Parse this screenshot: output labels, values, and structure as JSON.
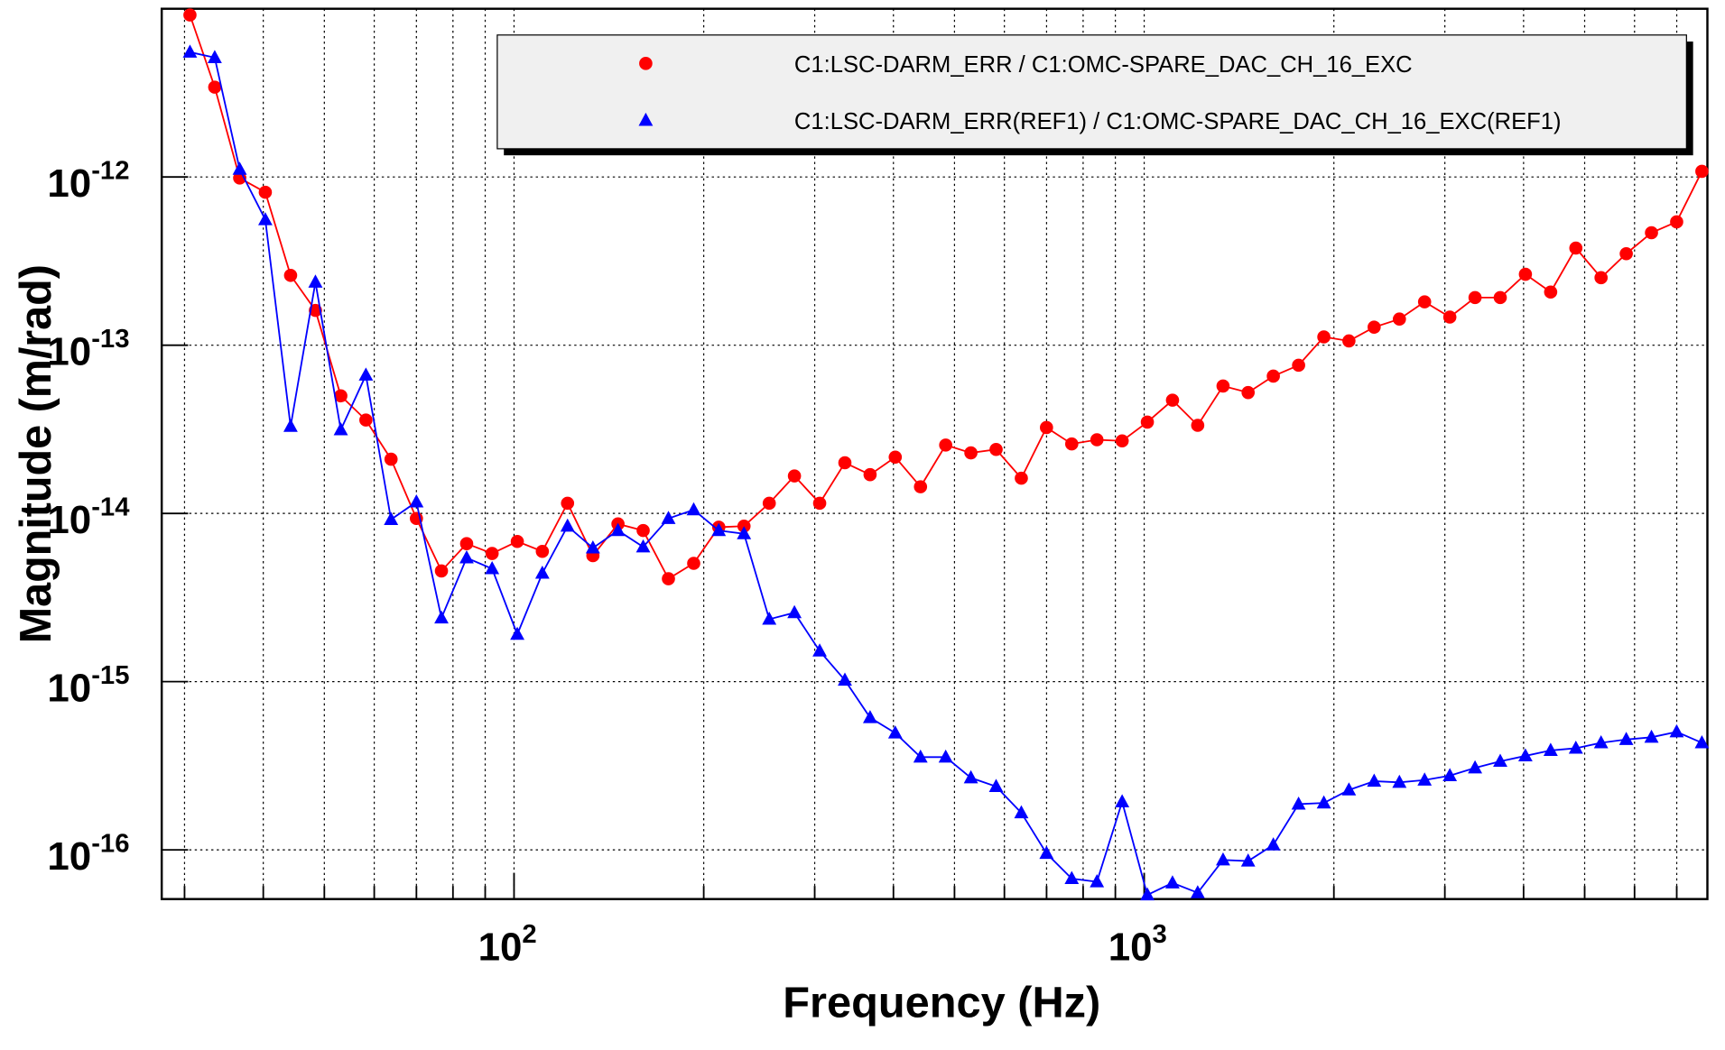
{
  "chart_data": {
    "type": "line",
    "x_label": "Frequency (Hz)",
    "y_label": "Magnitude (m/rad)",
    "log_x": true,
    "log_y": true,
    "grid": true,
    "legend_position": "top-right",
    "xlim": [
      27.6,
      7830
    ],
    "ylim": [
      5.1e-17,
      1e-11
    ],
    "xticks": [
      {
        "value": 100,
        "label": "10",
        "exponent": "2"
      },
      {
        "value": 1000,
        "label": "10",
        "exponent": "3"
      }
    ],
    "xminor_ticks": [
      30,
      40,
      50,
      60,
      70,
      80,
      90,
      200,
      300,
      400,
      500,
      600,
      700,
      800,
      900,
      2000,
      3000,
      4000,
      5000,
      6000,
      7000
    ],
    "yticks": [
      {
        "value": 1e-16,
        "label": "10",
        "exponent": "-16"
      },
      {
        "value": 1e-15,
        "label": "10",
        "exponent": "-15"
      },
      {
        "value": 1e-14,
        "label": "10",
        "exponent": "-14"
      },
      {
        "value": 1e-13,
        "label": "10",
        "exponent": "-13"
      },
      {
        "value": 1e-12,
        "label": "10",
        "exponent": "-12"
      }
    ],
    "x": [
      30.6,
      33.5,
      36.7,
      40.3,
      44.2,
      48.4,
      53.1,
      58.2,
      63.8,
      70.0,
      76.7,
      84.1,
      92.3,
      101.2,
      110.9,
      121.6,
      133.4,
      146.2,
      160.3,
      175.8,
      192.8,
      211.3,
      231.7,
      254.1,
      278.6,
      305.5,
      335.0,
      367.3,
      402.7,
      441.6,
      484.2,
      530.9,
      582.1,
      638.3,
      699.8,
      767.4,
      841.4,
      922.6,
      1011.6,
      1109,
      1216,
      1334,
      1462,
      1603,
      1758,
      1928,
      2113,
      2317,
      2541,
      2786,
      3055,
      3350,
      3673,
      4027,
      4416,
      4842,
      5309,
      5821,
      6383,
      6998,
      7674
    ],
    "series": [
      {
        "name": "C1:LSC-DARM_ERR / C1:OMC-SPARE_DAC_CH_16_EXC",
        "color": "#ff0000",
        "marker": "circle",
        "values": [
          9.18e-12,
          3.42e-12,
          9.85e-13,
          8.11e-13,
          2.6e-13,
          1.61e-13,
          5e-14,
          3.59e-14,
          2.1e-14,
          9.33e-15,
          4.55e-15,
          6.61e-15,
          5.78e-15,
          6.81e-15,
          5.95e-15,
          1.15e-14,
          5.61e-15,
          8.66e-15,
          7.91e-15,
          4.09e-15,
          5.05e-15,
          8.28e-15,
          8.4e-15,
          1.15e-14,
          1.67e-14,
          1.15e-14,
          2e-14,
          1.7e-14,
          2.16e-14,
          1.44e-14,
          2.55e-14,
          2.29e-14,
          2.4e-14,
          1.62e-14,
          3.24e-14,
          2.59e-14,
          2.74e-14,
          2.7e-14,
          3.49e-14,
          4.71e-14,
          3.34e-14,
          5.72e-14,
          5.23e-14,
          6.55e-14,
          7.6e-14,
          1.12e-13,
          1.06e-13,
          1.28e-13,
          1.43e-13,
          1.81e-13,
          1.47e-13,
          1.92e-13,
          1.92e-13,
          2.64e-13,
          2.07e-13,
          3.78e-13,
          2.52e-13,
          3.5e-13,
          4.66e-13,
          5.41e-13,
          1.08e-12
        ]
      },
      {
        "name": "C1:LSC-DARM_ERR(REF1) / C1:OMC-SPARE_DAC_CH_16_EXC(REF1)",
        "color": "#0000ff",
        "marker": "triangle",
        "values": [
          5.52e-12,
          5.12e-12,
          1.11e-12,
          5.57e-13,
          3.29e-14,
          2.37e-13,
          3.14e-14,
          6.64e-14,
          9.2e-15,
          1.17e-14,
          2.39e-15,
          5.44e-15,
          4.69e-15,
          1.91e-15,
          4.41e-15,
          8.4e-15,
          6.23e-15,
          7.91e-15,
          6.32e-15,
          9.33e-15,
          1.05e-14,
          7.91e-15,
          7.57e-15,
          2.35e-15,
          2.57e-15,
          1.52e-15,
          1.02e-15,
          6.11e-16,
          4.95e-16,
          3.56e-16,
          3.56e-16,
          2.68e-16,
          2.38e-16,
          1.66e-16,
          9.53e-17,
          6.75e-17,
          6.46e-17,
          1.93e-16,
          5.4e-17,
          6.36e-17,
          5.56e-17,
          8.71e-17,
          8.58e-17,
          1.07e-16,
          1.87e-16,
          1.9e-16,
          2.27e-16,
          2.56e-16,
          2.52e-16,
          2.6e-16,
          2.76e-16,
          3.07e-16,
          3.36e-16,
          3.62e-16,
          3.9e-16,
          4.02e-16,
          4.33e-16,
          4.53e-16,
          4.67e-16,
          5.03e-16,
          4.33e-16
        ]
      }
    ]
  }
}
